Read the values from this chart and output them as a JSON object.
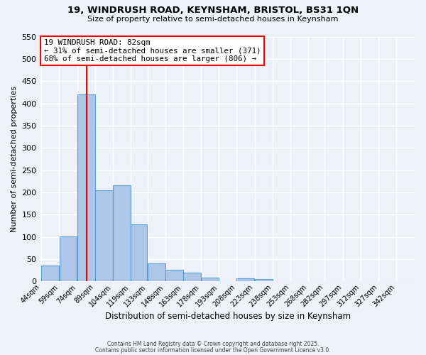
{
  "title_line1": "19, WINDRUSH ROAD, KEYNSHAM, BRISTOL, BS31 1QN",
  "title_line2": "Size of property relative to semi-detached houses in Keynsham",
  "xlabel": "Distribution of semi-detached houses by size in Keynsham",
  "ylabel": "Number of semi-detached properties",
  "bar_values": [
    35,
    101,
    420,
    205,
    215,
    128,
    41,
    26,
    20,
    8,
    0,
    7,
    5,
    0,
    0,
    0,
    0,
    0,
    0,
    0,
    0
  ],
  "bin_edges": [
    44,
    59,
    74,
    89,
    104,
    119,
    133,
    148,
    163,
    178,
    193,
    208,
    223,
    238,
    253,
    268,
    282,
    297,
    312,
    327,
    342
  ],
  "bin_labels": [
    "44sqm",
    "59sqm",
    "74sqm",
    "89sqm",
    "104sqm",
    "119sqm",
    "133sqm",
    "148sqm",
    "163sqm",
    "178sqm",
    "193sqm",
    "208sqm",
    "223sqm",
    "238sqm",
    "253sqm",
    "268sqm",
    "282sqm",
    "297sqm",
    "312sqm",
    "327sqm",
    "342sqm"
  ],
  "bar_color": "#aec6e8",
  "bar_edge_color": "#5a9fd4",
  "vline_color": "red",
  "vline_x": 82,
  "annotation_title": "19 WINDRUSH ROAD: 82sqm",
  "annotation_line2": "← 31% of semi-detached houses are smaller (371)",
  "annotation_line3": "68% of semi-detached houses are larger (806) →",
  "annotation_box_color": "white",
  "annotation_box_edge": "red",
  "ylim": [
    0,
    550
  ],
  "yticks": [
    0,
    50,
    100,
    150,
    200,
    250,
    300,
    350,
    400,
    450,
    500,
    550
  ],
  "background_color": "#eef2f8",
  "grid_color": "white",
  "footer_line1": "Contains HM Land Registry data © Crown copyright and database right 2025.",
  "footer_line2": "Contains public sector information licensed under the Open Government Licence v3.0."
}
